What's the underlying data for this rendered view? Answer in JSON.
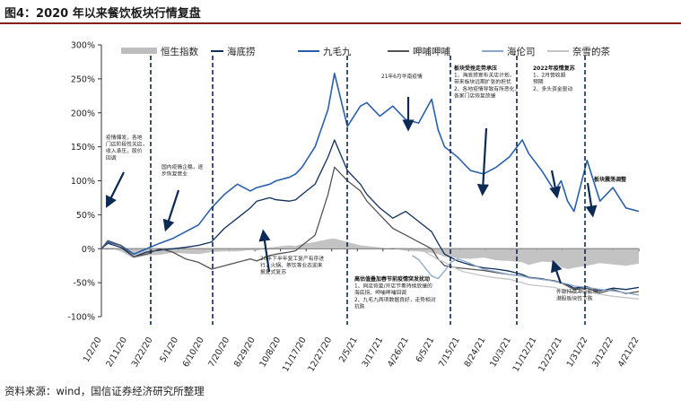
{
  "figure_title": "图4：2020 年以来餐饮板块行情复盘",
  "source": "资料来源：wind，国信证券经济研究所整理",
  "chart_data": {
    "type": "line",
    "title": "",
    "xlabel": "",
    "ylabel": "",
    "ylim": [
      -100,
      300
    ],
    "y_ticks": [
      "300%",
      "250%",
      "200%",
      "150%",
      "100%",
      "50%",
      "0%",
      "-50%",
      "-100%"
    ],
    "x_ticks": [
      "1/2/20",
      "2/11/20",
      "3/22/20",
      "5/1/20",
      "6/10/20",
      "7/20/20",
      "8/29/20",
      "10/8/20",
      "11/17/20",
      "12/27/20",
      "2/5/21",
      "3/17/21",
      "4/26/21",
      "6/5/21",
      "7/15/21",
      "8/24/21",
      "10/3/21",
      "11/12/21",
      "12/22/21",
      "1/31/22",
      "3/12/22",
      "4/21/22"
    ],
    "grid": false,
    "legend_position": "top",
    "series": [
      {
        "name": "恒生指数",
        "style": "area",
        "color": "#bdbdbd",
        "x": [
          0,
          10,
          30,
          50,
          70,
          90,
          110,
          130,
          150,
          170,
          190,
          210,
          230,
          240,
          260,
          270,
          290,
          300,
          310,
          330,
          350,
          360,
          380,
          400,
          410,
          430,
          450,
          470,
          490,
          510,
          520,
          530,
          550,
          570,
          590,
          610,
          630,
          650,
          660,
          680,
          700,
          710,
          720,
          730,
          750,
          770,
          790,
          810,
          830
        ],
        "y": [
          0,
          2,
          -4,
          -14,
          -10,
          -9,
          -6,
          -7,
          -8,
          -5,
          -4,
          -4,
          -2,
          -3,
          2,
          3,
          5,
          4,
          7,
          10,
          14,
          15,
          10,
          5,
          4,
          2,
          0,
          -3,
          -4,
          -6,
          -8,
          -12,
          -14,
          -15,
          -13,
          -17,
          -18,
          -20,
          -24,
          -19,
          -20,
          -27,
          -30,
          -28,
          -25,
          -21,
          -23,
          -25,
          -22
        ]
      },
      {
        "name": "海底捞",
        "style": "line",
        "color": "#0f2f5c",
        "x": [
          0,
          10,
          30,
          50,
          70,
          90,
          110,
          130,
          150,
          170,
          190,
          210,
          230,
          240,
          260,
          270,
          290,
          300,
          310,
          330,
          350,
          360,
          380,
          400,
          410,
          430,
          450,
          470,
          490,
          510,
          520,
          530,
          550,
          570,
          590,
          610,
          630,
          650,
          660,
          680,
          700,
          710,
          720,
          730,
          750,
          770,
          790,
          810,
          830
        ],
        "y": [
          0,
          8,
          2,
          -12,
          -5,
          -2,
          0,
          2,
          5,
          10,
          30,
          45,
          60,
          70,
          75,
          72,
          70,
          72,
          80,
          95,
          135,
          160,
          115,
          95,
          80,
          60,
          45,
          55,
          40,
          25,
          8,
          -8,
          -18,
          -24,
          -28,
          -30,
          -33,
          -38,
          -42,
          -44,
          -48,
          -50,
          -53,
          -58,
          -56,
          -62,
          -58,
          -60,
          -57
        ]
      },
      {
        "name": "九毛九",
        "style": "line",
        "color": "#2a5fae",
        "x": [
          0,
          10,
          30,
          50,
          70,
          90,
          110,
          130,
          150,
          170,
          190,
          210,
          230,
          240,
          260,
          270,
          290,
          300,
          310,
          330,
          350,
          360,
          380,
          400,
          410,
          430,
          450,
          470,
          490,
          510,
          520,
          530,
          550,
          570,
          590,
          610,
          630,
          650,
          660,
          680,
          700,
          710,
          720,
          730,
          750,
          770,
          790,
          810,
          830
        ],
        "y": [
          0,
          10,
          5,
          -8,
          0,
          8,
          15,
          25,
          35,
          60,
          80,
          95,
          85,
          90,
          95,
          100,
          105,
          110,
          120,
          150,
          205,
          258,
          180,
          210,
          215,
          195,
          210,
          190,
          185,
          220,
          175,
          150,
          135,
          115,
          110,
          120,
          135,
          160,
          140,
          115,
          85,
          100,
          70,
          55,
          130,
          70,
          90,
          60,
          55
        ]
      },
      {
        "name": "呷哺呷哺",
        "style": "line",
        "color": "#555555",
        "x": [
          0,
          10,
          30,
          50,
          70,
          90,
          110,
          130,
          150,
          170,
          190,
          210,
          230,
          240,
          260,
          270,
          290,
          300,
          310,
          330,
          350,
          360,
          380,
          400,
          410,
          430,
          450,
          470,
          490,
          510,
          520,
          530,
          550,
          570,
          590,
          610,
          630,
          650,
          660,
          680,
          700,
          710,
          720,
          730,
          750,
          770,
          790,
          810,
          830
        ],
        "y": [
          0,
          12,
          5,
          -12,
          -8,
          0,
          -5,
          -15,
          -20,
          -30,
          -25,
          -20,
          -15,
          -18,
          -10,
          -8,
          -5,
          -3,
          5,
          20,
          80,
          120,
          100,
          85,
          70,
          50,
          30,
          20,
          10,
          0,
          -15,
          -25,
          -28,
          -30,
          -32,
          -35,
          -38,
          -40,
          -42,
          -45,
          -47,
          -50,
          -55,
          -60,
          -58,
          -65,
          -60,
          -66,
          -63
        ]
      },
      {
        "name": "海伦司",
        "style": "line",
        "color": "#8aa6c8",
        "x": [
          480,
          490,
          500,
          510,
          520,
          530,
          540,
          550,
          560,
          570,
          590,
          610,
          630,
          650,
          660,
          680,
          700,
          710,
          720,
          730,
          750,
          770,
          790,
          810,
          830
        ],
        "y": [
          -10,
          -16,
          -28,
          -40,
          -44,
          -33,
          -20,
          -15,
          -18,
          -22,
          -30,
          -34,
          -38,
          -40,
          -43,
          -45,
          -48,
          -50,
          -52,
          -55,
          -57,
          -60,
          -62,
          -65,
          -68
        ]
      },
      {
        "name": "奈雪的茶",
        "style": "line",
        "color": "#c4c4c4",
        "x": [
          500,
          510,
          520,
          530,
          540,
          550,
          560,
          570,
          590,
          610,
          630,
          650,
          660,
          680,
          700,
          710,
          720,
          730,
          750,
          770,
          790,
          810,
          830
        ],
        "y": [
          -5,
          -10,
          -16,
          -20,
          -25,
          -30,
          -34,
          -36,
          -40,
          -43,
          -45,
          -50,
          -53,
          -55,
          -57,
          -60,
          -62,
          -65,
          -63,
          -67,
          -70,
          -72,
          -74
        ]
      }
    ],
    "annotations": [
      [
        "疫情爆发，各地",
        "门店阶段性关店，",
        "收入承压，股价",
        "回调"
      ],
      [
        "国内疫情企稳，逐",
        "步恢复营业"
      ],
      [
        "20年下半年复工复产有序进",
        "行，火锅、茶饮等业态迎来",
        "报复式复苏"
      ],
      [
        "21年6月华南疫情"
      ],
      [
        "高估值叠加春节前疫情突发扰动",
        "1、同店恢复/开店节奏持续放缓的",
        "海底捞、呷哺呷哺回调",
        "2、九毛九两项数据良好，走势相对",
        "抗跌"
      ],
      [
        "板块受挫走势承压",
        "1、海底捞宣布关店计划，",
        "带来板块远期扩张的担忧",
        "2、各地疫情导致有所恶化，",
        "各家门店恢复放缓"
      ],
      [
        "2022年疫情复苏",
        "1、2月营收超",
        "预期",
        "2、多头资金驱动"
      ],
      [
        "板块震荡调整"
      ],
      [
        "外部持续冲突影响，",
        "港股板块性下跌"
      ]
    ]
  }
}
